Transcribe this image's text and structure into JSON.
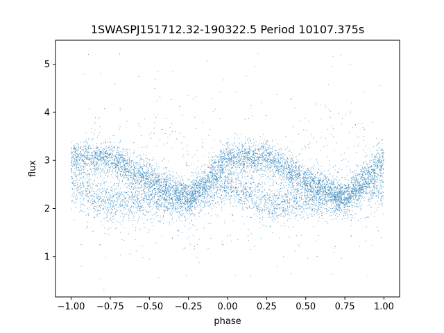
{
  "chart_data": {
    "type": "scatter",
    "title": "1SWASPJ151712.32-190322.5 Period 10107.375s",
    "xlabel": "phase",
    "ylabel": "flux",
    "xlim": [
      -1.1,
      1.1
    ],
    "ylim": [
      0.16,
      5.5
    ],
    "xticks": [
      -1.0,
      -0.75,
      -0.5,
      -0.25,
      0.0,
      0.25,
      0.5,
      0.75,
      1.0
    ],
    "xtick_labels": [
      "−1.00",
      "−0.75",
      "−0.50",
      "−0.25",
      "0.00",
      "0.25",
      "0.50",
      "0.75",
      "1.00"
    ],
    "yticks": [
      1,
      2,
      3,
      4,
      5
    ],
    "ytick_labels": [
      "1",
      "2",
      "3",
      "4",
      "5"
    ],
    "grid": false,
    "marker_color": "#1f77b4",
    "series": [
      {
        "phase_profile": [
          {
            "phase": -1.0,
            "high_band": 3.05,
            "low_band": 2.5
          },
          {
            "phase": -0.75,
            "high_band": 3.05,
            "low_band": 2.1
          },
          {
            "phase": -0.5,
            "high_band": 2.6,
            "low_band": 2.2
          },
          {
            "phase": -0.25,
            "high_band": 2.2,
            "low_band": 2.2
          },
          {
            "phase": 0.0,
            "high_band": 3.05,
            "low_band": 2.5
          },
          {
            "phase": 0.25,
            "high_band": 3.05,
            "low_band": 2.1
          },
          {
            "phase": 0.5,
            "high_band": 2.6,
            "low_band": 2.2
          },
          {
            "phase": 0.75,
            "high_band": 2.2,
            "low_band": 2.2
          },
          {
            "phase": 1.0,
            "high_band": 3.05,
            "low_band": 2.5
          }
        ]
      }
    ]
  }
}
